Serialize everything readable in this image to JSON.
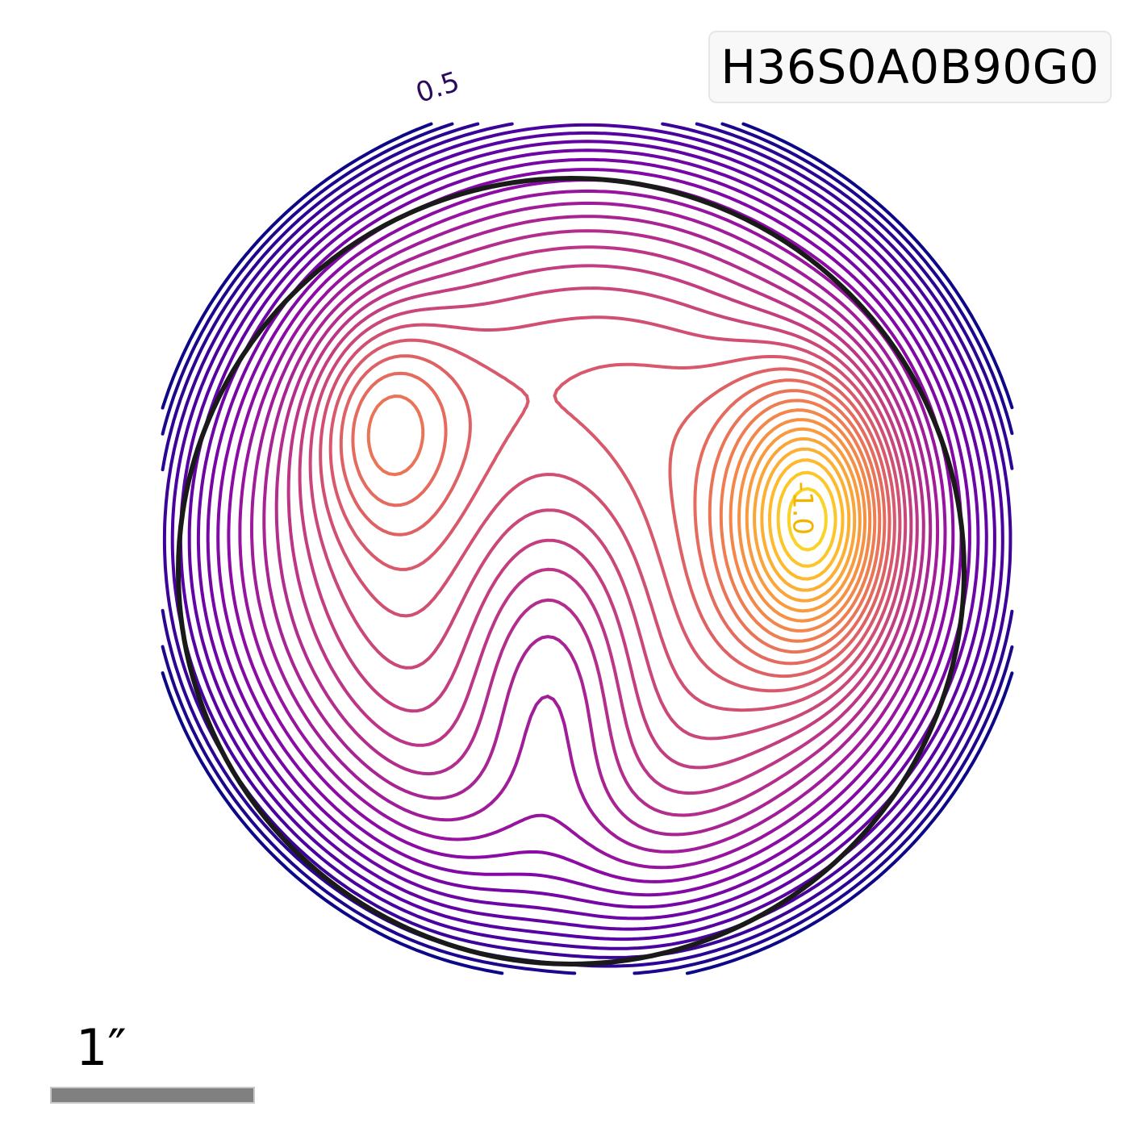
{
  "chart_data": {
    "type": "contour",
    "title": "",
    "xlabel": "",
    "ylabel": "",
    "colormap": "plasma",
    "contour_levels": {
      "start": -1.1,
      "end": 0.6,
      "step": 0.05
    },
    "contour_labels": [
      {
        "text": "0.5",
        "level": 0.5,
        "color": "#2c0a5c"
      },
      {
        "text": "-1.0",
        "level": -1.0,
        "color": "#f2b400"
      }
    ],
    "features": [
      {
        "kind": "minimum",
        "value": -1.05,
        "location": "right"
      },
      {
        "kind": "local-minimum",
        "value": -0.15,
        "location": "upper-left"
      },
      {
        "kind": "saddle-valley",
        "value": 0.15,
        "location": "center-bottom"
      }
    ],
    "critical_curve": {
      "shape": "circle",
      "color": "#1a1a1a"
    },
    "grid": false,
    "axes_visible": false
  },
  "legend": {
    "label": "H36S0A0B90G0",
    "placement": "top-right"
  },
  "scale_bar": {
    "label": "1″",
    "length_arcsec": 1,
    "color": "#808080"
  }
}
